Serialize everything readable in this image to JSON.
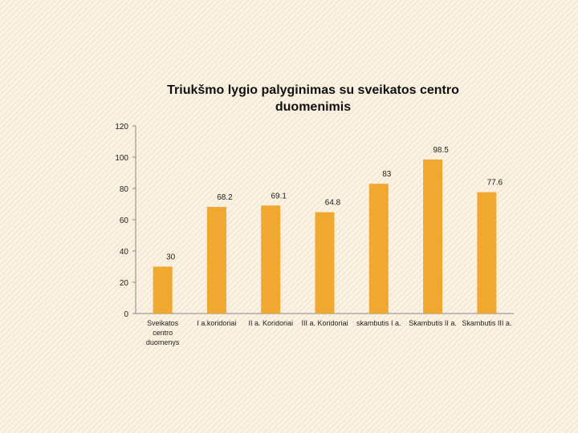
{
  "chart_data": {
    "type": "bar",
    "title": "Triukšmo lygio palyginimas su sveikatos centro duomenimis",
    "categories": [
      [
        "Sveikatos",
        "centro",
        "duomenys"
      ],
      [
        "I a.koridoriai"
      ],
      [
        "II a. Koridoriai"
      ],
      [
        "III a. Koridoriai"
      ],
      [
        "skambutis I a."
      ],
      [
        "Skambutis II a."
      ],
      [
        "Skambutis III a."
      ]
    ],
    "values": [
      30,
      68.2,
      69.1,
      64.8,
      83,
      98.5,
      77.6
    ],
    "value_labels": [
      "30",
      "68.2",
      "69.1",
      "64.8",
      "83",
      "98.5",
      "77.6"
    ],
    "yticks": [
      "0",
      "20",
      "40",
      "60",
      "80",
      "100",
      "120"
    ],
    "ylim": [
      0,
      120
    ],
    "xlabel": "",
    "ylabel": "",
    "bar_color": "#f0a830",
    "axis_color": "#888888",
    "grid": false,
    "legend": false
  }
}
